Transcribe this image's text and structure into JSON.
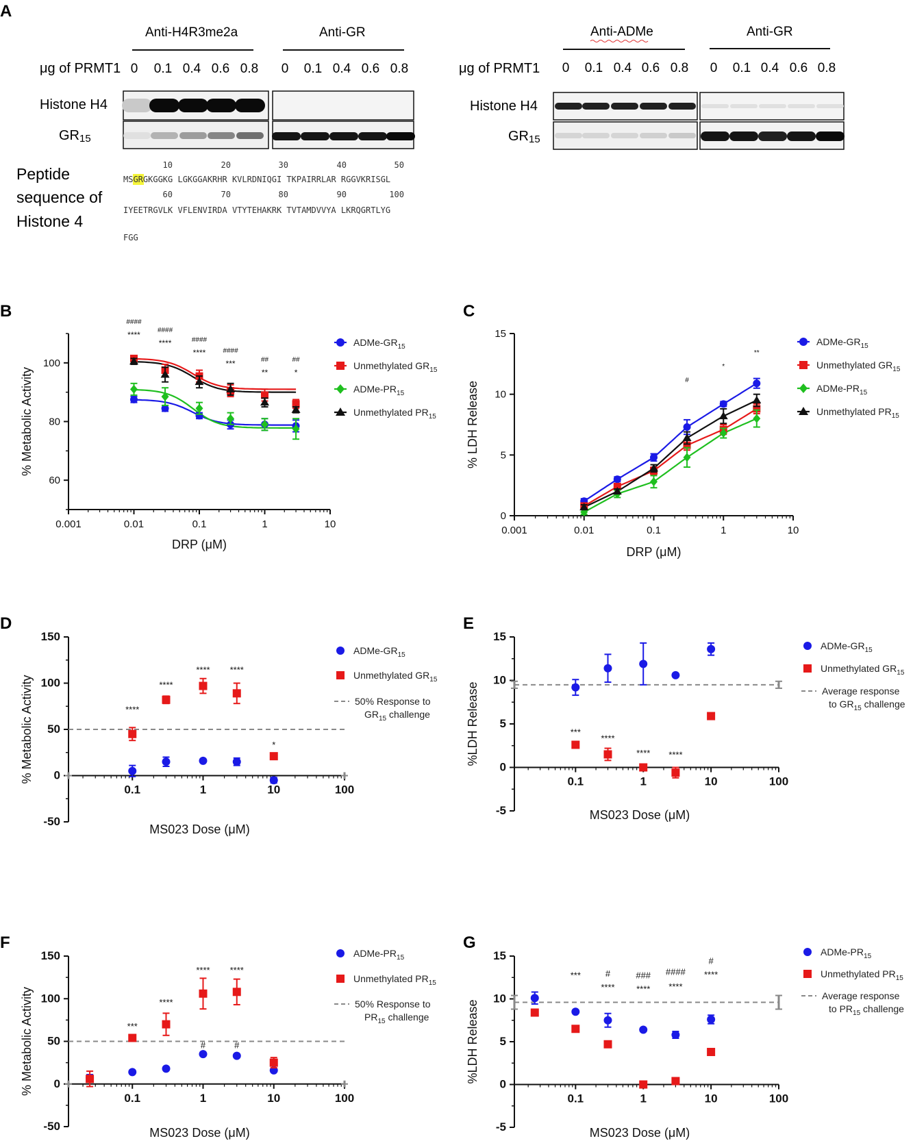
{
  "panels": {
    "A": "A",
    "B": "B",
    "C": "C",
    "D": "D",
    "E": "E",
    "F": "F",
    "G": "G"
  },
  "blot": {
    "left": {
      "header1": "Anti-H4R3me2a",
      "header2": "Anti-GR",
      "dose_label": "μg of PRMT1",
      "doses1": [
        "0",
        "0.1",
        "0.4",
        "0.6",
        "0.8"
      ],
      "doses2": [
        "0",
        "0.1",
        "0.4",
        "0.6",
        "0.8"
      ],
      "row1": "Histone H4",
      "row2": "GR",
      "row2_sub": "15"
    },
    "right": {
      "header1": "Anti-ADMe",
      "header2": "Anti-GR",
      "dose_label": "μg of PRMT1",
      "doses1": [
        "0",
        "0.1",
        "0.4",
        "0.6",
        "0.8"
      ],
      "doses2": [
        "0",
        "0.1",
        "0.4",
        "0.6",
        "0.8"
      ],
      "row1": "Histone H4",
      "row2": "GR",
      "row2_sub": "15"
    },
    "band_intensity": {
      "left_h4": [
        0.15,
        1.0,
        1.0,
        1.0,
        1.0
      ],
      "left_gr_ab_h4": [
        0,
        0,
        0,
        0,
        0
      ],
      "left_gr15": [
        0.05,
        0.25,
        0.35,
        0.45,
        0.55
      ],
      "left_gr_ab_gr15": [
        0.95,
        0.95,
        0.95,
        0.95,
        1.0
      ],
      "right_h4": [
        0.9,
        0.9,
        0.9,
        0.9,
        0.9
      ],
      "right_gr_ab_h4": [
        0.05,
        0.05,
        0.05,
        0.05,
        0.05
      ],
      "right_gr15": [
        0.1,
        0.1,
        0.1,
        0.12,
        0.15
      ],
      "right_gr_ab_gr15": [
        0.95,
        0.95,
        0.9,
        0.95,
        1.0
      ]
    }
  },
  "peptide": {
    "title_lines": [
      "Peptide",
      "sequence of",
      "Histone 4"
    ],
    "numbers1": [
      "10",
      "20",
      "30",
      "40",
      "50"
    ],
    "line1_prefix": "MS",
    "line1_highlight": "GR",
    "line1_rest": "GKGGKG LGKGGAKRHR KVLRDNIQGI TKPAIRRLAR RGGVKRISGL",
    "numbers2": [
      "60",
      "70",
      "80",
      "90",
      "100"
    ],
    "line2": "IYEETRGVLK VFLENVIRDA VTYTEHAKRK TVTAMDVVYA LKRQGRTLYG",
    "line3": "FGG",
    "highlight_color": "#f5f53a"
  },
  "chart_data": [
    {
      "id": "B",
      "type": "line",
      "xscale": "log",
      "xlabel": "DRP (μM)",
      "ylabel": "% Metabolic Activity",
      "xlim": [
        0.001,
        10
      ],
      "ylim": [
        50,
        110
      ],
      "x_ticks": [
        "0.001",
        "0.01",
        "0.1",
        "1",
        "10"
      ],
      "y_ticks": [
        "60",
        "80",
        "100"
      ],
      "x": [
        0.01,
        0.03,
        0.1,
        0.3,
        1,
        3
      ],
      "series": [
        {
          "name": "ADMe-GR",
          "sub": "15",
          "color": "#1a1ae6",
          "marker": "circle",
          "values": [
            87.5,
            84.5,
            82,
            79,
            79,
            78.5
          ],
          "errors": [
            1,
            1,
            1,
            1.5,
            2,
            2
          ],
          "fit_to": 78.8
        },
        {
          "name": "Unmethylated GR",
          "sub": "15",
          "color": "#e61919",
          "marker": "square",
          "values": [
            101.5,
            97.5,
            95.5,
            90.5,
            89,
            86
          ],
          "errors": [
            1,
            2,
            2,
            2,
            2,
            1.5
          ],
          "fit_to": 91
        },
        {
          "name": "ADMe-PR",
          "sub": "15",
          "color": "#1fbf1f",
          "marker": "diamond",
          "values": [
            91,
            88.5,
            84.5,
            81,
            79,
            77.5
          ],
          "errors": [
            2,
            3,
            2,
            2,
            2,
            3.5
          ],
          "fit_to": 77.8
        },
        {
          "name": "Unmethylated PR",
          "sub": "15",
          "color": "#111111",
          "marker": "triangle",
          "values": [
            100.5,
            96,
            93.5,
            91,
            86.5,
            84
          ],
          "errors": [
            1,
            2.5,
            2,
            2,
            1.5,
            1
          ],
          "fit_to": 90
        }
      ],
      "annotations": [
        {
          "x": 0.01,
          "top": "####",
          "bottom": "****"
        },
        {
          "x": 0.03,
          "top": "####",
          "bottom": "****"
        },
        {
          "x": 0.1,
          "top": "####",
          "bottom": "****"
        },
        {
          "x": 0.3,
          "top": "####",
          "bottom": "***"
        },
        {
          "x": 1,
          "top": "##",
          "bottom": "**"
        },
        {
          "x": 3,
          "top": "##",
          "bottom": "*"
        }
      ]
    },
    {
      "id": "C",
      "type": "line",
      "xscale": "log",
      "xlabel": "DRP (μM)",
      "ylabel": "% LDH Release",
      "xlim": [
        0.001,
        10
      ],
      "ylim": [
        0,
        15
      ],
      "x_ticks": [
        "0.001",
        "0.01",
        "0.1",
        "1",
        "10"
      ],
      "y_ticks": [
        "0",
        "5",
        "10",
        "15"
      ],
      "x": [
        0.01,
        0.03,
        0.1,
        0.3,
        1,
        3
      ],
      "series": [
        {
          "name": "ADMe-GR",
          "sub": "15",
          "color": "#1a1ae6",
          "marker": "circle",
          "values": [
            1.2,
            3.0,
            4.8,
            7.3,
            9.2,
            10.9
          ],
          "errors": [
            0.2,
            0.2,
            0.3,
            0.6,
            0.2,
            0.4
          ]
        },
        {
          "name": "Unmethylated GR",
          "sub": "15",
          "color": "#e61919",
          "marker": "square",
          "values": [
            0.8,
            2.4,
            3.7,
            5.8,
            7.1,
            8.8
          ],
          "errors": [
            0.2,
            0.2,
            0.3,
            0.4,
            0.4,
            0.4
          ]
        },
        {
          "name": "ADMe-PR",
          "sub": "15",
          "color": "#1fbf1f",
          "marker": "diamond",
          "values": [
            0.3,
            1.8,
            2.8,
            4.8,
            6.8,
            8.0
          ],
          "errors": [
            0.2,
            0.3,
            0.5,
            0.8,
            0.4,
            0.7
          ]
        },
        {
          "name": "Unmethylated PR",
          "sub": "15",
          "color": "#111111",
          "marker": "triangle",
          "values": [
            0.7,
            2.0,
            3.9,
            6.4,
            8.2,
            9.5
          ],
          "errors": [
            0.2,
            0.2,
            0.3,
            0.5,
            0.6,
            0.5
          ]
        }
      ],
      "annotations": [
        {
          "x": 0.3,
          "top": "#",
          "bottom": ""
        },
        {
          "x": 1,
          "top": "*",
          "bottom": ""
        },
        {
          "x": 3,
          "top": "**",
          "bottom": ""
        }
      ]
    },
    {
      "id": "D",
      "type": "scatter",
      "xscale": "log",
      "xlabel": "MS023 Dose (μM)",
      "ylabel": "% Metabolic Activity",
      "xlim": [
        0.0125,
        100
      ],
      "ylim": [
        -50,
        150
      ],
      "x_ticks": [
        "0.1",
        "1",
        "10",
        "100"
      ],
      "y_ticks": [
        "-50",
        "0",
        "50",
        "100",
        "150"
      ],
      "x": [
        0.1,
        0.3,
        1,
        3,
        10
      ],
      "series": [
        {
          "name": "ADMe-GR",
          "sub": "15",
          "color": "#1a1ae6",
          "marker": "circle",
          "values": [
            5,
            15,
            16,
            15,
            -5
          ],
          "errors": [
            6,
            5,
            1,
            4,
            3
          ]
        },
        {
          "name": "Unmethylated GR",
          "sub": "15",
          "color": "#e61919",
          "marker": "square",
          "values": [
            45,
            82,
            97,
            89,
            21
          ],
          "errors": [
            7,
            4,
            8,
            11,
            2
          ]
        }
      ],
      "reference_line": {
        "label1": "50% Response to",
        "label2": "GR",
        "sub": "15",
        "label3": " challenge",
        "value": 50,
        "edge_error": 2
      },
      "annotations": [
        {
          "x": 0.1,
          "text": "****",
          "y": 68
        },
        {
          "x": 0.3,
          "text": "****",
          "y": 95
        },
        {
          "x": 1,
          "text": "****",
          "y": 111
        },
        {
          "x": 3,
          "text": "****",
          "y": 111
        },
        {
          "x": 10,
          "text": "*",
          "y": 30
        }
      ]
    },
    {
      "id": "E",
      "type": "scatter",
      "xscale": "log",
      "xlabel": "MS023 Dose (μM)",
      "ylabel": "%LDH Release",
      "xlim": [
        0.0125,
        100
      ],
      "ylim": [
        -5,
        15
      ],
      "x_ticks": [
        "0.1",
        "1",
        "10",
        "100"
      ],
      "y_ticks": [
        "-5",
        "0",
        "5",
        "10",
        "15"
      ],
      "x": [
        0.1,
        0.3,
        1,
        3,
        10
      ],
      "series": [
        {
          "name": "ADMe-GR",
          "sub": "15",
          "color": "#1a1ae6",
          "marker": "circle",
          "values": [
            9.2,
            11.4,
            11.9,
            10.6,
            13.6
          ],
          "errors": [
            0.9,
            1.6,
            2.4,
            0.1,
            0.7
          ]
        },
        {
          "name": "Unmethylated GR",
          "sub": "15",
          "color": "#e61919",
          "marker": "square",
          "values": [
            2.6,
            1.5,
            0.0,
            -0.6,
            5.9
          ],
          "errors": [
            0.2,
            0.7,
            0.3,
            0.6,
            0.2
          ]
        }
      ],
      "reference_line": {
        "label1": "Average response",
        "label2": "to GR",
        "sub": "15",
        "label3": " challenge",
        "value": 9.5,
        "edge_error": 0.4
      },
      "annotations": [
        {
          "x": 0.1,
          "text": "***",
          "y": 3.7
        },
        {
          "x": 0.3,
          "text": "****",
          "y": 3.0
        },
        {
          "x": 1,
          "text": "****",
          "y": 1.3
        },
        {
          "x": 3,
          "text": "****",
          "y": 1.1
        }
      ]
    },
    {
      "id": "F",
      "type": "scatter",
      "xscale": "log",
      "xlabel": "MS023 Dose (μM)",
      "ylabel": "% Metabolic Activity",
      "xlim": [
        0.0125,
        100
      ],
      "ylim": [
        -50,
        150
      ],
      "x_ticks": [
        "0.1",
        "1",
        "10",
        "100"
      ],
      "y_ticks": [
        "-50",
        "0",
        "50",
        "100",
        "150"
      ],
      "x": [
        0.025,
        0.1,
        0.3,
        1,
        3,
        10
      ],
      "series": [
        {
          "name": "ADMe-PR",
          "sub": "15",
          "color": "#1a1ae6",
          "marker": "circle",
          "values": [
            7,
            14,
            18,
            35,
            33,
            16
          ],
          "errors": [
            4,
            1,
            1,
            1,
            1,
            1
          ]
        },
        {
          "name": "Unmethylated PR",
          "sub": "15",
          "color": "#e61919",
          "marker": "square",
          "values": [
            6,
            54,
            70,
            106,
            108,
            25
          ],
          "errors": [
            9,
            2,
            13,
            18,
            15,
            6
          ]
        }
      ],
      "reference_line": {
        "label1": "50% Response to",
        "label2": "PR",
        "sub": "15",
        "label3": " challenge",
        "value": 50,
        "edge_error": 4
      },
      "annotations": [
        {
          "x": 0.1,
          "text": "***",
          "y": 64
        },
        {
          "x": 0.3,
          "text": "****",
          "y": 92
        },
        {
          "x": 1,
          "text": "****",
          "y": 130
        },
        {
          "x": 3,
          "text": "****",
          "y": 130
        },
        {
          "x": 1,
          "text": "#",
          "y": 42
        },
        {
          "x": 3,
          "text": "#",
          "y": 42
        }
      ]
    },
    {
      "id": "G",
      "type": "scatter",
      "xscale": "log",
      "xlabel": "MS023 Dose (μM)",
      "ylabel": "%LDH Release",
      "xlim": [
        0.0125,
        100
      ],
      "ylim": [
        -5,
        15
      ],
      "x_ticks": [
        "0.1",
        "1",
        "10",
        "100"
      ],
      "y_ticks": [
        "-5",
        "0",
        "5",
        "10",
        "15"
      ],
      "x": [
        0.025,
        0.1,
        0.3,
        1,
        3,
        10
      ],
      "series": [
        {
          "name": "ADMe-PR",
          "sub": "15",
          "color": "#1a1ae6",
          "marker": "circle",
          "values": [
            10.1,
            8.5,
            7.5,
            6.4,
            5.8,
            7.6
          ],
          "errors": [
            0.7,
            0.1,
            0.8,
            0.1,
            0.4,
            0.5
          ]
        },
        {
          "name": "Unmethylated PR",
          "sub": "15",
          "color": "#e61919",
          "marker": "square",
          "values": [
            8.4,
            6.5,
            4.7,
            0.0,
            0.4,
            3.8
          ],
          "errors": [
            0.1,
            0.1,
            0.1,
            0.1,
            0.1,
            0.4
          ]
        }
      ],
      "reference_line": {
        "label1": "Average response",
        "label2": "to PR",
        "sub": "15",
        "label3": " challenge",
        "value": 9.6,
        "edge_error": 0.8
      },
      "annotations": [
        {
          "x": 0.1,
          "text": "***",
          "y": 12.4
        },
        {
          "x": 0.3,
          "text": "#",
          "y": 12.6
        },
        {
          "x": 0.3,
          "text": "****",
          "y": 11.0
        },
        {
          "x": 1,
          "text": "###",
          "y": 12.4
        },
        {
          "x": 1,
          "text": "****",
          "y": 10.8
        },
        {
          "x": 3,
          "text": "####",
          "y": 12.8
        },
        {
          "x": 3,
          "text": "****",
          "y": 11.1
        },
        {
          "x": 10,
          "text": "#",
          "y": 14.1
        },
        {
          "x": 10,
          "text": "****",
          "y": 12.5
        }
      ]
    }
  ]
}
